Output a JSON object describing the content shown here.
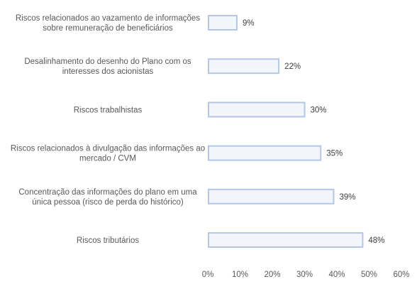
{
  "chart_data": {
    "type": "bar",
    "orientation": "horizontal",
    "title": "",
    "xlabel": "",
    "ylabel": "",
    "xlim": [
      0,
      60
    ],
    "grid": false,
    "legend": "none",
    "value_format": "percent",
    "categories": [
      [
        "Riscos relacionados ao vazamento de informações",
        "sobre remuneração de beneficiários"
      ],
      [
        "Desalinhamento do desenho do Plano com os",
        "interesses dos acionistas"
      ],
      [
        "Riscos trabalhistas"
      ],
      [
        "Riscos relacionados à divulgação das informações ao",
        "mercado / CVM"
      ],
      [
        "Concentração das informações do plano em uma",
        "única pessoa (risco de perda do histórico)"
      ],
      [
        "Riscos tributários"
      ]
    ],
    "values": [
      9,
      22,
      30,
      35,
      39,
      48
    ],
    "value_labels": [
      "9%",
      "22%",
      "30%",
      "35%",
      "39%",
      "48%"
    ],
    "x_ticks": [
      0,
      10,
      20,
      30,
      40,
      50,
      60
    ],
    "x_tick_labels": [
      "0%",
      "10%",
      "20%",
      "30%",
      "40%",
      "50%",
      "60%"
    ],
    "colors": {
      "bar_fill": "#f2f5fb",
      "bar_stroke": "#b4c7e7",
      "text": "#595959"
    }
  }
}
